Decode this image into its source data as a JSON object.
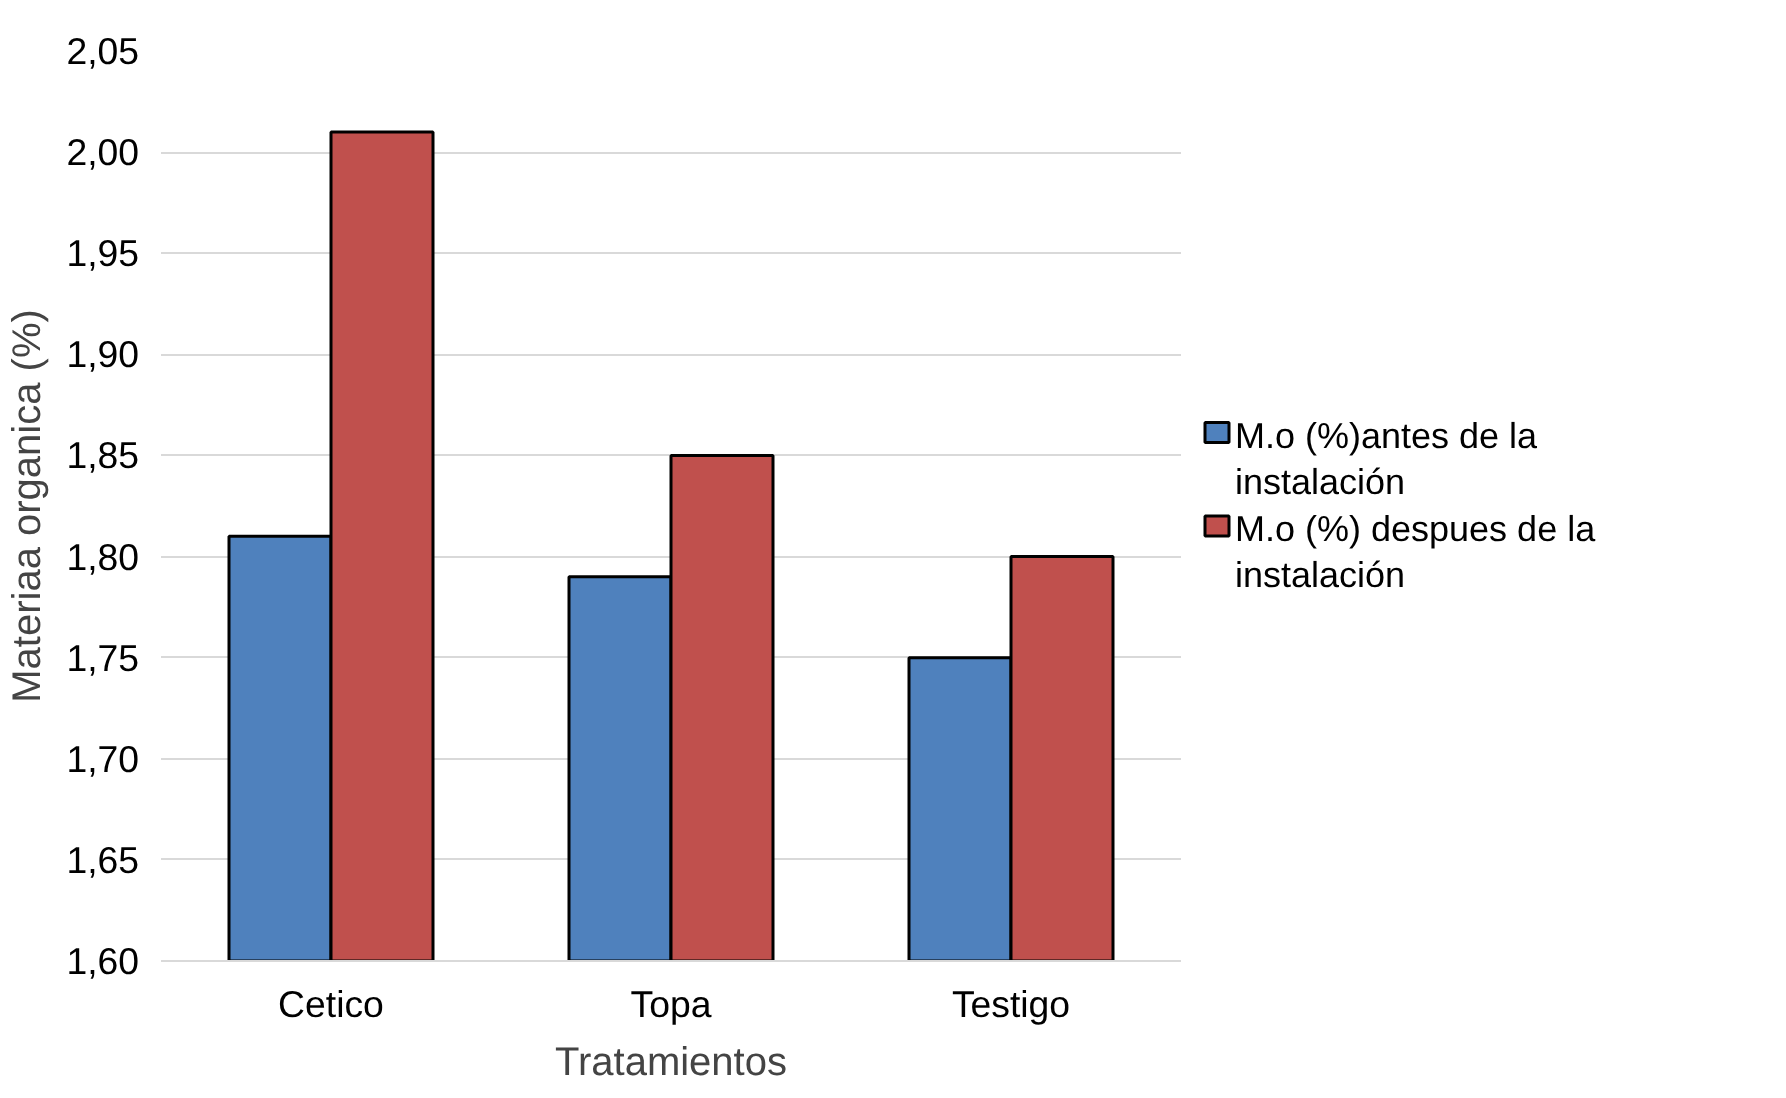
{
  "chart_data": {
    "type": "bar",
    "xlabel": "Tratamientos",
    "ylabel": "Materiaa organica (%)",
    "categories": [
      "Cetico",
      "Topa",
      "Testigo"
    ],
    "series": [
      {
        "name": "M.o (%)antes de la instalación",
        "color": "#4f81bd",
        "values": [
          1.81,
          1.79,
          1.75
        ]
      },
      {
        "name": "M.o (%) despues de la instalación",
        "color": "#c0504d",
        "values": [
          2.01,
          1.85,
          1.8
        ]
      }
    ],
    "ylim": [
      1.6,
      2.05
    ],
    "yticks": [
      {
        "value": 1.6,
        "label": "1,60"
      },
      {
        "value": 1.65,
        "label": "1,65"
      },
      {
        "value": 1.7,
        "label": "1,70"
      },
      {
        "value": 1.75,
        "label": "1,75"
      },
      {
        "value": 1.8,
        "label": "1,80"
      },
      {
        "value": 1.85,
        "label": "1,85"
      },
      {
        "value": 1.9,
        "label": "1,90"
      },
      {
        "value": 1.95,
        "label": "1,95"
      },
      {
        "value": 2.0,
        "label": "2,00"
      },
      {
        "value": 2.05,
        "label": "2,05"
      }
    ],
    "grid": "y",
    "legend": "right"
  }
}
